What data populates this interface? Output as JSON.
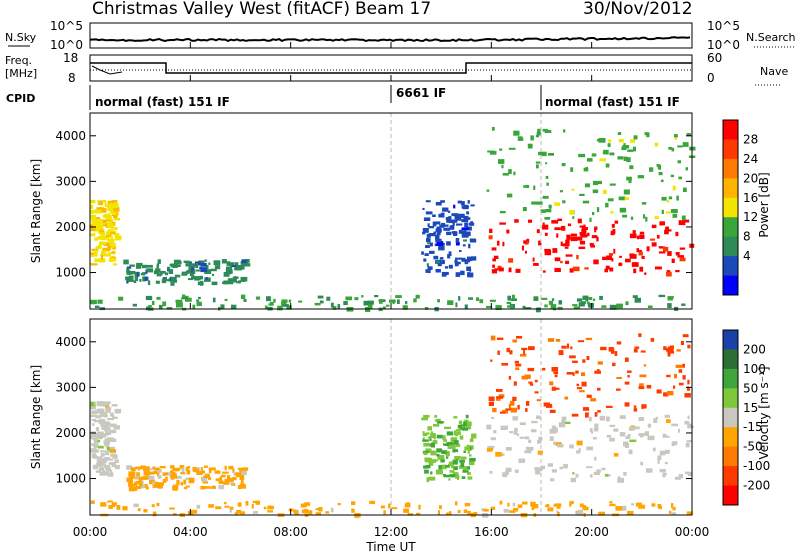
{
  "header": {
    "title": "Christmas Valley West (fitACF)",
    "beam": "Beam 17",
    "date": "30/Nov/2012"
  },
  "panels": {
    "nsky": {
      "label": "N.Sky",
      "ticks": [
        "10^5",
        "10^0"
      ],
      "right_ticks": [
        "10^5",
        "10^0"
      ],
      "right_label": "N.Search"
    },
    "freq": {
      "label_line1": "Freq.",
      "label_line2": "[MHz]",
      "ticks": [
        "18",
        "8"
      ],
      "right_ticks": [
        "60",
        "0"
      ],
      "right_label": "Nave"
    },
    "cpid": {
      "label": "CPID",
      "segments": [
        "normal (fast) 151 IF",
        "6661 IF",
        "normal (fast) 151 IF"
      ]
    }
  },
  "xaxis": {
    "label": "Time UT",
    "ticks": [
      "00:00",
      "04:00",
      "08:00",
      "12:00",
      "16:00",
      "20:00",
      "00:00"
    ],
    "range_hours": [
      0,
      24
    ]
  },
  "power_colorbar": {
    "label": "Power [dB]",
    "ticks": [
      "28",
      "24",
      "20",
      "16",
      "12",
      "8",
      "4"
    ],
    "colors": [
      "#ff0000",
      "#ff3a00",
      "#ff7a00",
      "#ffb400",
      "#f2e600",
      "#3aa63a",
      "#2e8b57",
      "#1c49b8",
      "#0000ff"
    ]
  },
  "velocity_colorbar": {
    "label": "Velocity [m s⁻¹]",
    "ticks": [
      "200",
      "100",
      "50",
      "15",
      "-15",
      "-50",
      "-100",
      "-200"
    ],
    "colors": [
      "#1c3fa8",
      "#2c6e35",
      "#3ea63a",
      "#7ec83a",
      "#c8c8c0",
      "#ffa400",
      "#ff7a00",
      "#ff3a00",
      "#ff0000"
    ]
  },
  "chart_data": [
    {
      "type": "heatmap",
      "title": "",
      "xlabel": "Time UT",
      "ylabel": "Slant Range [km]",
      "xlim": [
        0,
        24
      ],
      "ylim": [
        200,
        4500
      ],
      "yticks": [
        "1000",
        "2000",
        "3000",
        "4000"
      ],
      "colorbar": "Power [dB]",
      "clim": [
        0,
        30
      ],
      "regions": [
        {
          "t0": 0.0,
          "t1": 1.0,
          "r0": 1200,
          "r1": 2600,
          "value": 16
        },
        {
          "t0": 1.3,
          "t1": 6.2,
          "r0": 800,
          "r1": 1300,
          "value": 8
        },
        {
          "t0": 0.0,
          "t1": 24.0,
          "r0": 220,
          "r1": 520,
          "value": 10
        },
        {
          "t0": 13.2,
          "t1": 15.2,
          "r0": 1000,
          "r1": 2600,
          "value": 5
        },
        {
          "t0": 15.8,
          "t1": 23.9,
          "r0": 1000,
          "r1": 2200,
          "value": 28
        },
        {
          "t0": 15.8,
          "t1": 23.9,
          "r0": 2200,
          "r1": 4200,
          "value": 12
        }
      ]
    },
    {
      "type": "heatmap",
      "title": "",
      "xlabel": "Time UT",
      "ylabel": "Slant Range [km]",
      "xlim": [
        0,
        24
      ],
      "ylim": [
        200,
        4500
      ],
      "yticks": [
        "1000",
        "2000",
        "3000",
        "4000"
      ],
      "colorbar": "Velocity [m s⁻¹]",
      "clim": [
        -200,
        200
      ],
      "regions": [
        {
          "t0": 0.0,
          "t1": 1.0,
          "r0": 1100,
          "r1": 2700,
          "value": 0
        },
        {
          "t0": 1.3,
          "t1": 6.2,
          "r0": 800,
          "r1": 1300,
          "value": -40
        },
        {
          "t0": 0.0,
          "t1": 24.0,
          "r0": 220,
          "r1": 520,
          "value": -40
        },
        {
          "t0": 13.2,
          "t1": 15.2,
          "r0": 1000,
          "r1": 2400,
          "value": 60
        },
        {
          "t0": 15.8,
          "t1": 23.9,
          "r0": 1000,
          "r1": 2400,
          "value": 0
        },
        {
          "t0": 15.8,
          "t1": 23.9,
          "r0": 2400,
          "r1": 4200,
          "value": -120
        }
      ]
    }
  ]
}
